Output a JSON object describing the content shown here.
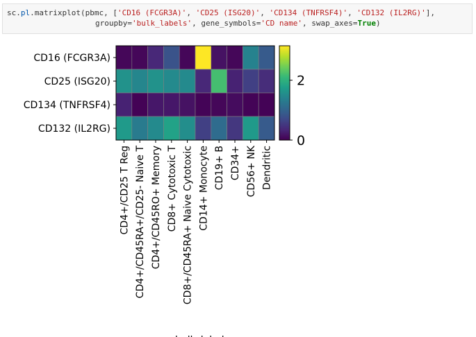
{
  "code": {
    "prefix": "sc.",
    "module": "pl",
    "dot": ".",
    "func": "matrixplot",
    "open": "(pbmc, [",
    "genes": [
      "'CD16 (FCGR3A)'",
      "'CD25 (ISG20)'",
      "'CD134 (TNFRSF4)'",
      "'CD132 (IL2RG)'"
    ],
    "close1": "],",
    "groupby_kw": "groupby=",
    "groupby_val": "'bulk_labels'",
    "gs_kw": ", gene_symbols=",
    "gs_val": "'CD name'",
    "swap_kw": ", swap_axes=",
    "swap_val": "True",
    "close2": ")"
  },
  "chart_data": {
    "type": "heatmap",
    "rows": [
      "CD16 (FCGR3A)",
      "CD25 (ISG20)",
      "CD134 (TNFRSF4)",
      "CD132 (IL2RG)"
    ],
    "columns": [
      "CD4+/CD25 T Reg",
      "CD4+/CD45RA+/CD25- Naive T",
      "CD4+/CD45RO+ Memory",
      "CD8+ Cytotoxic T",
      "CD8+/CD45RA+ Naive Cytotoxic",
      "CD14+ Monocyte",
      "CD19+ B",
      "CD34+",
      "CD56+ NK",
      "Dendritic"
    ],
    "values": [
      [
        0.05,
        0.05,
        0.35,
        0.8,
        0.05,
        3.15,
        0.15,
        0.05,
        1.4,
        0.9
      ],
      [
        1.6,
        1.45,
        1.6,
        1.5,
        1.5,
        0.35,
        2.2,
        0.3,
        0.6,
        0.4
      ],
      [
        0.3,
        0.02,
        0.2,
        0.2,
        0.15,
        0.03,
        0.05,
        0.1,
        0.03,
        0.02
      ],
      [
        1.7,
        1.3,
        1.5,
        1.8,
        1.55,
        0.6,
        1.1,
        0.5,
        1.7,
        0.9
      ]
    ],
    "xlabel": "bulk_labels",
    "colormap": "viridis",
    "colorbar": {
      "range": [
        0,
        3.15
      ],
      "ticks": [
        "0",
        "2"
      ]
    }
  }
}
